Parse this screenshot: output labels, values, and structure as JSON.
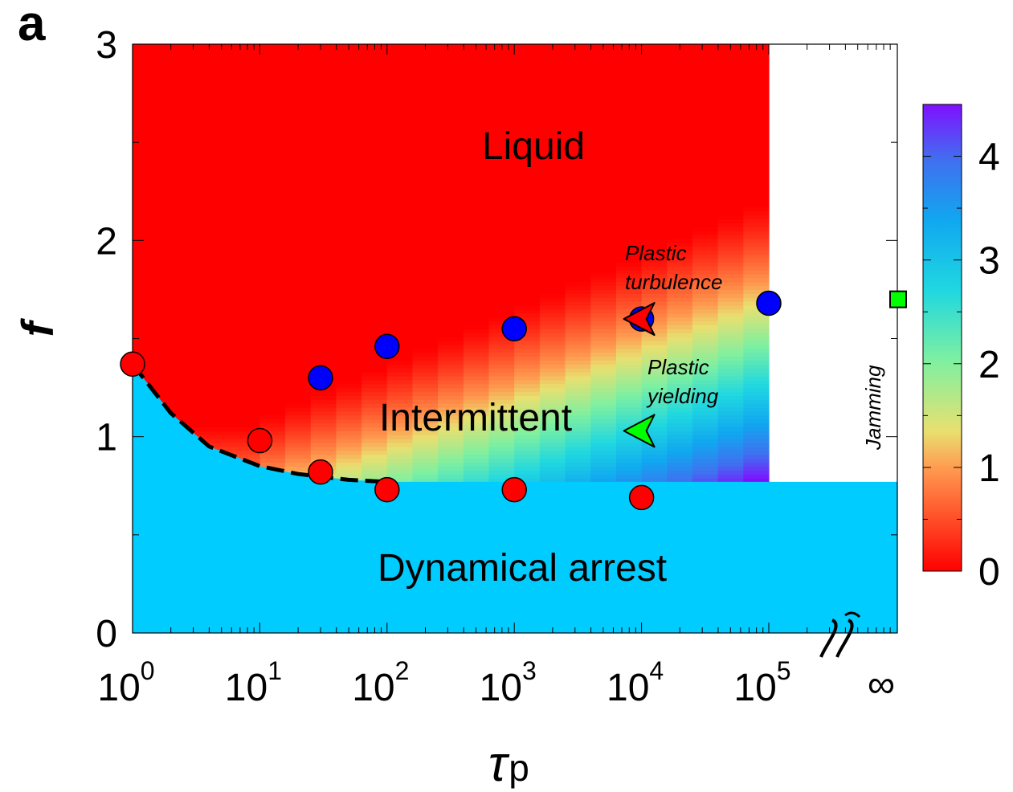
{
  "chart_data": {
    "type": "heatmap",
    "panel_label": "a",
    "xlabel": "τ",
    "xlabel_subscript": "p",
    "ylabel": "f",
    "x_scale": "log",
    "xlim": [
      1,
      1000000
    ],
    "ylim": [
      0,
      3
    ],
    "x_ticks": [
      {
        "base": "10",
        "exp": "0",
        "value": 1
      },
      {
        "base": "10",
        "exp": "1",
        "value": 10
      },
      {
        "base": "10",
        "exp": "2",
        "value": 100
      },
      {
        "base": "10",
        "exp": "3",
        "value": 1000
      },
      {
        "base": "10",
        "exp": "4",
        "value": 10000
      },
      {
        "base": "10",
        "exp": "5",
        "value": 100000
      }
    ],
    "x_infinity_label": "∞",
    "y_ticks": [
      "0",
      "1",
      "2",
      "3"
    ],
    "colorbar": {
      "min": 0,
      "max": 4.5,
      "ticks": [
        "0",
        "1",
        "2",
        "3",
        "4"
      ],
      "colormap": "rainbow"
    },
    "regions": {
      "liquid": "Liquid",
      "intermittent": "Intermittent",
      "arrest": "Dynamical arrest",
      "arrest_color": "#00ccff"
    },
    "annotations": {
      "plastic_turbulence": [
        "Plastic",
        "turbulence"
      ],
      "plastic_yielding": [
        "Plastic",
        "yielding"
      ],
      "jamming": "Jamming"
    },
    "series": [
      {
        "color": "#ff0000",
        "points": [
          [
            1,
            1.37
          ],
          [
            10,
            0.98
          ],
          [
            30,
            0.82
          ],
          [
            100,
            0.73
          ],
          [
            1000,
            0.73
          ],
          [
            10000,
            0.69
          ]
        ]
      },
      {
        "color": "#0000ff",
        "points": [
          [
            30,
            1.3
          ],
          [
            100,
            1.46
          ],
          [
            1000,
            1.55
          ],
          [
            10000,
            1.6
          ],
          [
            100000,
            1.68
          ]
        ]
      }
    ],
    "special_markers": [
      {
        "symbol": "triangle",
        "color": "#ff0000",
        "x": 10000,
        "y": 1.6
      },
      {
        "symbol": "triangle",
        "color": "#00ff00",
        "x": 10000,
        "y": 1.03
      },
      {
        "symbol": "square",
        "color": "#00ff00",
        "x": "infinity",
        "y": 1.7
      }
    ],
    "boundary_curve_style": "dashed",
    "boundary_curve": [
      [
        1,
        1.37
      ],
      [
        2,
        1.12
      ],
      [
        4,
        0.95
      ],
      [
        10,
        0.85
      ],
      [
        20,
        0.81
      ],
      [
        50,
        0.78
      ],
      [
        100,
        0.77
      ]
    ],
    "arrest_boundary_f": 0.77,
    "heatmap_x_max": 100000
  }
}
